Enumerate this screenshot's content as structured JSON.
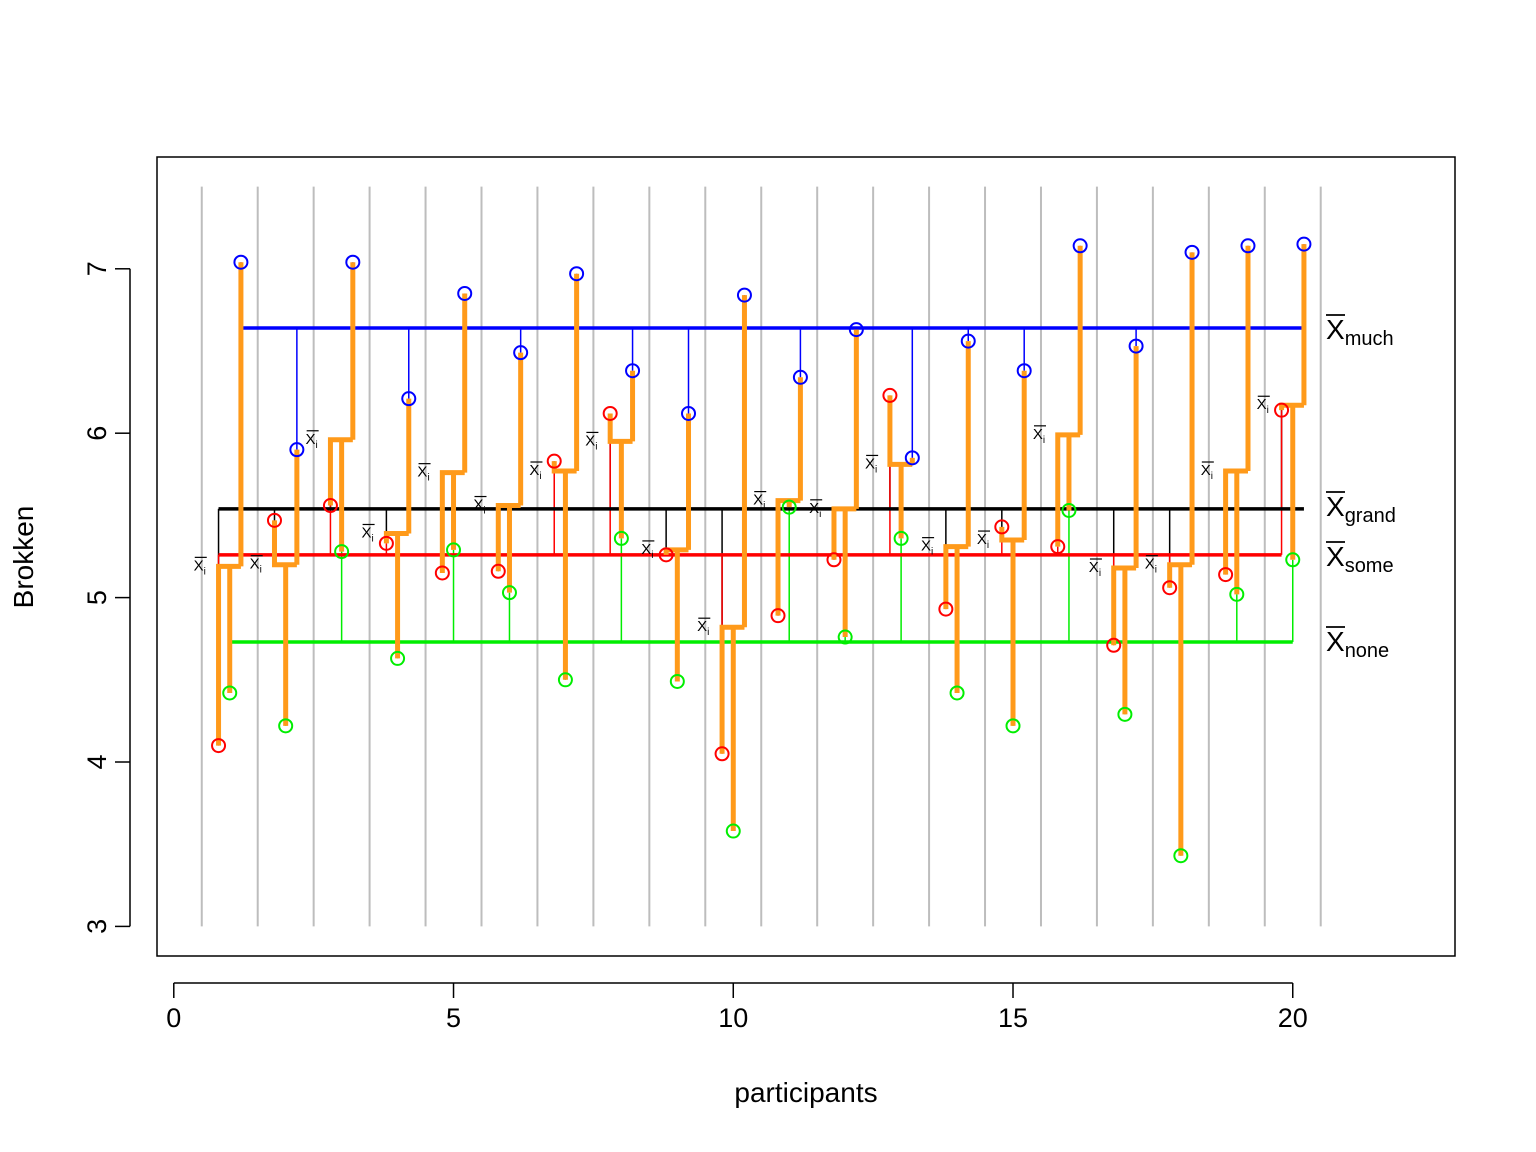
{
  "chart_data": {
    "type": "scatter",
    "xlabel": "participants",
    "ylabel": "Brokken",
    "xlim": [
      -0.3,
      22.9
    ],
    "ylim": [
      2.82,
      7.68
    ],
    "x_ticks": [
      0,
      5,
      10,
      15,
      20
    ],
    "y_ticks": [
      3,
      4,
      5,
      6,
      7
    ],
    "grid_x": [
      0.5,
      1.5,
      2.5,
      3.5,
      4.5,
      5.5,
      6.5,
      7.5,
      8.5,
      9.5,
      10.5,
      11.5,
      12.5,
      13.5,
      14.5,
      15.5,
      16.5,
      17.5,
      18.5,
      19.5,
      20.5
    ],
    "grid_y_range": [
      3.0,
      7.5
    ],
    "subject_mean_label": "X",
    "subject_mean_subscript": "i",
    "means": {
      "grand": 5.54,
      "none": 4.73,
      "some": 5.26,
      "much": 6.64
    },
    "mean_labels": [
      {
        "key": "much",
        "letter": "X",
        "sub": "much"
      },
      {
        "key": "grand",
        "letter": "X",
        "sub": "grand"
      },
      {
        "key": "some",
        "letter": "X",
        "sub": "some"
      },
      {
        "key": "none",
        "letter": "X",
        "sub": "none"
      }
    ],
    "series": [
      {
        "key": "none",
        "color": "#00ee00",
        "offset": 0.0,
        "values": [
          4.42,
          4.22,
          5.28,
          4.63,
          5.29,
          5.03,
          4.5,
          5.36,
          4.49,
          3.58,
          5.55,
          4.76,
          5.36,
          4.42,
          4.22,
          5.53,
          4.29,
          3.43,
          5.02,
          5.23
        ]
      },
      {
        "key": "some",
        "color": "#ff0000",
        "offset": -0.2,
        "values": [
          4.1,
          5.47,
          5.56,
          5.33,
          5.15,
          5.16,
          5.83,
          6.12,
          5.26,
          4.05,
          4.89,
          5.23,
          6.23,
          4.93,
          5.43,
          5.31,
          4.71,
          5.06,
          5.14,
          6.14
        ]
      },
      {
        "key": "much",
        "color": "#0000ff",
        "offset": 0.2,
        "values": [
          7.04,
          5.9,
          7.04,
          6.21,
          6.85,
          6.49,
          6.97,
          6.38,
          6.12,
          6.84,
          6.34,
          6.63,
          5.85,
          6.56,
          6.38,
          7.14,
          6.53,
          7.1,
          7.14,
          7.15
        ]
      }
    ],
    "subject_means": [
      5.19,
      5.2,
      5.96,
      5.39,
      5.76,
      5.56,
      5.77,
      5.95,
      5.29,
      4.82,
      5.59,
      5.54,
      5.81,
      5.31,
      5.35,
      5.99,
      5.18,
      5.2,
      5.77,
      6.17
    ],
    "colors": {
      "grand": "#000000",
      "residual": "#ff9a1a",
      "grid": "#bdbdbd"
    }
  }
}
